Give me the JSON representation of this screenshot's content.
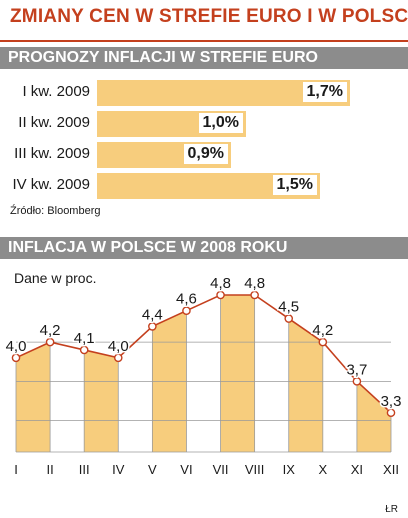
{
  "title": "ZMIANY CEN W STREFIE EURO I W POLSCE",
  "colors": {
    "accent": "#c4401e",
    "band": "#8c8c8c",
    "fill": "#f7cd7d",
    "line": "#c4401e"
  },
  "section1": {
    "heading": "PROGNOZY INFLACJI W STREFIE EURO",
    "source": "Źródło: Bloomberg"
  },
  "section2": {
    "heading": "INFLACJA W POLSCE W 2008 ROKU",
    "unit": "Dane w proc."
  },
  "author": "ŁR",
  "chart_data": [
    {
      "type": "bar",
      "orientation": "horizontal",
      "title": "PROGNOZY INFLACJI W STREFIE EURO",
      "categories": [
        "I kw. 2009",
        "II kw. 2009",
        "III kw. 2009",
        "IV kw. 2009"
      ],
      "values": [
        1.7,
        1.0,
        0.9,
        1.5
      ],
      "value_labels": [
        "1,7%",
        "1,0%",
        "0,9%",
        "1,5%"
      ],
      "xlim": [
        0,
        1.7
      ],
      "grid": false
    },
    {
      "type": "line",
      "title": "INFLACJA W POLSCE W 2008 ROKU",
      "categories": [
        "I",
        "II",
        "III",
        "IV",
        "V",
        "VI",
        "VII",
        "VIII",
        "IX",
        "X",
        "XI",
        "XII"
      ],
      "values": [
        4.0,
        4.2,
        4.1,
        4.0,
        4.4,
        4.6,
        4.8,
        4.8,
        4.5,
        4.2,
        3.7,
        3.3
      ],
      "value_labels": [
        "4,0",
        "4,2",
        "4,1",
        "4,0",
        "4,4",
        "4,6",
        "4,8",
        "4,8",
        "4,5",
        "4,2",
        "3,7",
        "3,3"
      ],
      "ylabel": "Dane w proc.",
      "ylim": [
        2.8,
        4.8
      ],
      "grid": true,
      "alternating_column_fill": true
    }
  ]
}
